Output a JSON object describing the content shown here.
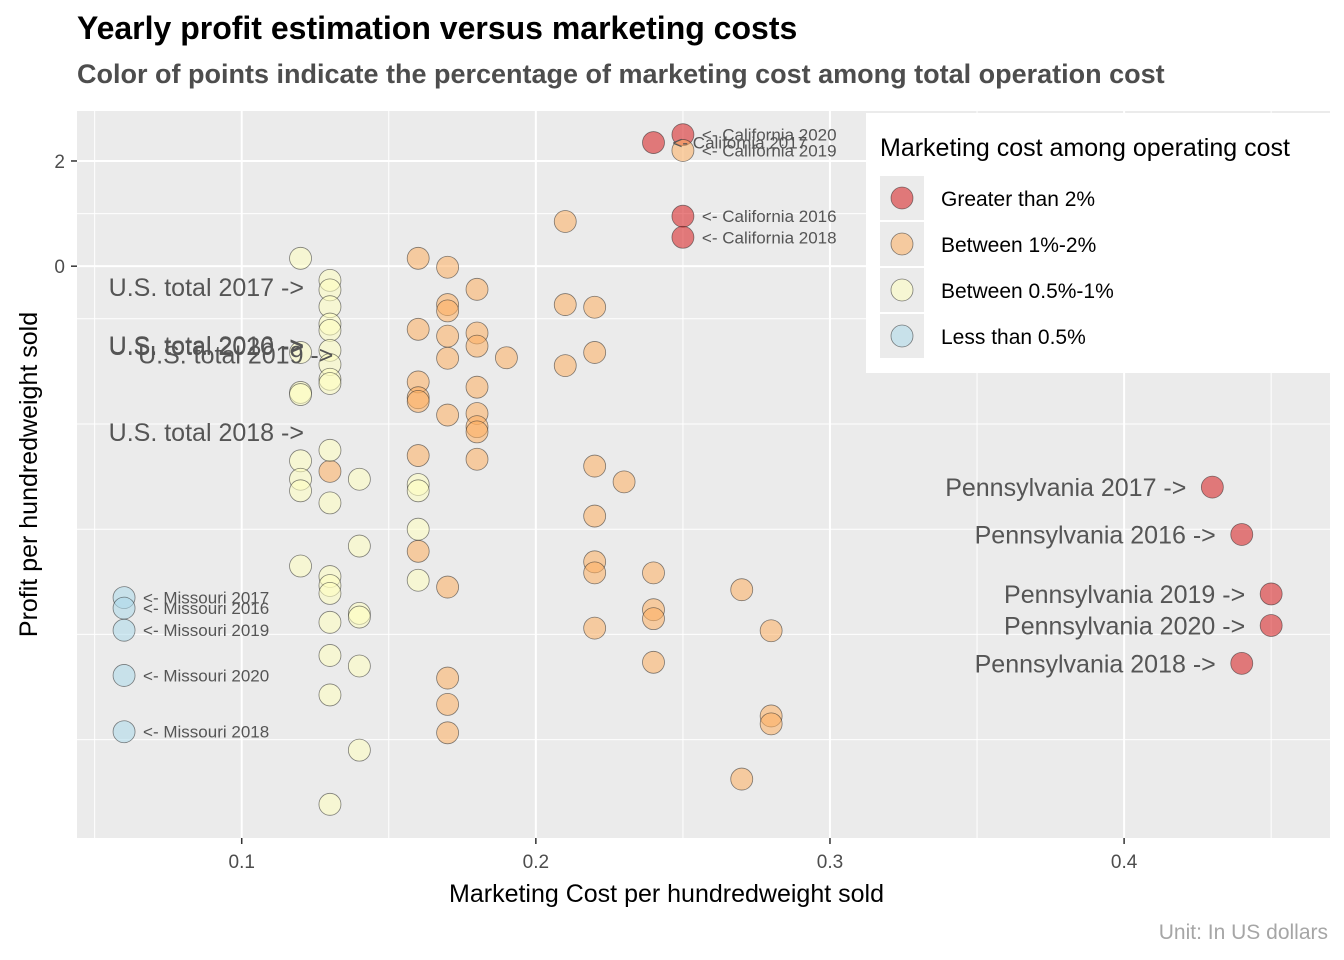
{
  "header": {
    "title": "Yearly profit estimation versus marketing costs",
    "subtitle": "Color of points indicate the percentage of marketing cost among total operation cost",
    "caption": "Unit: In US dollars"
  },
  "colors": {
    "panel_bg": "#ebebeb",
    "grid": "#ffffff",
    "gt2": "#d7191c",
    "b12": "#fdae61",
    "b0501": "#ffffbf",
    "lt05": "#abd9e9"
  },
  "chart_data": {
    "type": "scatter",
    "title": "Yearly profit estimation versus marketing costs",
    "subtitle": "Color of points indicate the percentage of marketing cost among total operation cost",
    "xlabel": "Marketing Cost per hundredweight sold",
    "ylabel": "Profit per hundredweight sold",
    "xlim": [
      0.044,
      0.47
    ],
    "ylim": [
      -10.87,
      2.95
    ],
    "x_ticks": [
      0.1,
      0.2,
      0.3,
      0.4
    ],
    "x_tick_labels": [
      "0.1",
      "0.2",
      "0.3",
      "0.4"
    ],
    "y_ticks": [
      2,
      0
    ],
    "y_tick_labels": [
      "2",
      "0"
    ],
    "grid": true,
    "legend": {
      "title": "Marketing cost among operating cost",
      "position": "right",
      "entries": [
        {
          "key": "gt2",
          "label": "Greater than 2%"
        },
        {
          "key": "b12",
          "label": "Between 1%-2%"
        },
        {
          "key": "b0501",
          "label": "Between 0.5%-1%"
        },
        {
          "key": "lt05",
          "label": "Less than 0.5%"
        }
      ]
    },
    "series": [
      {
        "category": "gt2",
        "points": [
          [
            0.25,
            2.5
          ],
          [
            0.24,
            2.35
          ],
          [
            0.25,
            0.95
          ],
          [
            0.25,
            0.55
          ],
          [
            0.43,
            -4.2
          ],
          [
            0.44,
            -5.1
          ],
          [
            0.45,
            -6.23
          ],
          [
            0.45,
            -6.83
          ],
          [
            0.44,
            -7.55
          ]
        ]
      },
      {
        "category": "b12",
        "points": [
          [
            0.25,
            2.2
          ],
          [
            0.21,
            0.85
          ],
          [
            0.16,
            0.15
          ],
          [
            0.17,
            -0.02
          ],
          [
            0.18,
            -0.44
          ],
          [
            0.17,
            -0.73
          ],
          [
            0.21,
            -0.73
          ],
          [
            0.22,
            -0.78
          ],
          [
            0.17,
            -0.85
          ],
          [
            0.16,
            -1.2
          ],
          [
            0.18,
            -1.27
          ],
          [
            0.17,
            -1.33
          ],
          [
            0.18,
            -1.52
          ],
          [
            0.22,
            -1.64
          ],
          [
            0.19,
            -1.74
          ],
          [
            0.17,
            -1.75
          ],
          [
            0.21,
            -1.89
          ],
          [
            0.16,
            -2.2
          ],
          [
            0.18,
            -2.3
          ],
          [
            0.16,
            -2.5
          ],
          [
            0.16,
            -2.57
          ],
          [
            0.18,
            -2.8
          ],
          [
            0.17,
            -2.83
          ],
          [
            0.18,
            -3.05
          ],
          [
            0.18,
            -3.15
          ],
          [
            0.16,
            -3.6
          ],
          [
            0.18,
            -3.67
          ],
          [
            0.22,
            -3.8
          ],
          [
            0.13,
            -3.9
          ],
          [
            0.23,
            -4.1
          ],
          [
            0.22,
            -4.75
          ],
          [
            0.16,
            -5.42
          ],
          [
            0.22,
            -5.62
          ],
          [
            0.22,
            -5.83
          ],
          [
            0.24,
            -5.83
          ],
          [
            0.17,
            -6.1
          ],
          [
            0.27,
            -6.15
          ],
          [
            0.24,
            -6.53
          ],
          [
            0.24,
            -6.7
          ],
          [
            0.22,
            -6.88
          ],
          [
            0.28,
            -6.93
          ],
          [
            0.24,
            -7.53
          ],
          [
            0.17,
            -7.83
          ],
          [
            0.17,
            -8.33
          ],
          [
            0.28,
            -8.55
          ],
          [
            0.28,
            -8.7
          ],
          [
            0.17,
            -8.87
          ],
          [
            0.27,
            -9.75
          ]
        ]
      },
      {
        "category": "b0501",
        "points": [
          [
            0.12,
            0.15
          ],
          [
            0.13,
            -0.27
          ],
          [
            0.13,
            -0.45
          ],
          [
            0.13,
            -0.77
          ],
          [
            0.13,
            -1.1
          ],
          [
            0.13,
            -1.22
          ],
          [
            0.13,
            -1.6
          ],
          [
            0.12,
            -1.64
          ],
          [
            0.13,
            -1.87
          ],
          [
            0.13,
            -2.15
          ],
          [
            0.13,
            -2.23
          ],
          [
            0.12,
            -2.4
          ],
          [
            0.12,
            -2.44
          ],
          [
            0.13,
            -3.5
          ],
          [
            0.12,
            -3.7
          ],
          [
            0.12,
            -4.05
          ],
          [
            0.14,
            -4.05
          ],
          [
            0.16,
            -4.15
          ],
          [
            0.12,
            -4.27
          ],
          [
            0.16,
            -4.27
          ],
          [
            0.13,
            -4.5
          ],
          [
            0.16,
            -5.0
          ],
          [
            0.14,
            -5.32
          ],
          [
            0.12,
            -5.7
          ],
          [
            0.13,
            -5.9
          ],
          [
            0.16,
            -5.97
          ],
          [
            0.13,
            -6.07
          ],
          [
            0.13,
            -6.22
          ],
          [
            0.14,
            -6.6
          ],
          [
            0.14,
            -6.67
          ],
          [
            0.13,
            -6.77
          ],
          [
            0.13,
            -7.4
          ],
          [
            0.14,
            -7.6
          ],
          [
            0.13,
            -8.15
          ],
          [
            0.14,
            -9.2
          ],
          [
            0.13,
            -10.23
          ]
        ]
      },
      {
        "category": "lt05",
        "points": [
          [
            0.06,
            -6.3
          ],
          [
            0.06,
            -6.5
          ],
          [
            0.06,
            -6.92
          ],
          [
            0.06,
            -7.78
          ],
          [
            0.06,
            -8.85
          ]
        ]
      }
    ],
    "annotations": [
      {
        "text": "<- California 2020",
        "x": 0.25,
        "y": 2.5,
        "side": "right",
        "size": "small"
      },
      {
        "text": "<- California 2017",
        "x": 0.24,
        "y": 2.35,
        "side": "right",
        "size": "small"
      },
      {
        "text": "<- California 2019",
        "x": 0.25,
        "y": 2.2,
        "side": "right",
        "size": "small"
      },
      {
        "text": "<- California 2016",
        "x": 0.25,
        "y": 0.95,
        "side": "right",
        "size": "small"
      },
      {
        "text": "<- California 2018",
        "x": 0.25,
        "y": 0.55,
        "side": "right",
        "size": "small"
      },
      {
        "text": "<- Missouri 2017",
        "x": 0.06,
        "y": -6.3,
        "side": "right",
        "size": "small"
      },
      {
        "text": "<- Missouri 2016",
        "x": 0.06,
        "y": -6.5,
        "side": "right",
        "size": "small"
      },
      {
        "text": "<- Missouri 2019",
        "x": 0.06,
        "y": -6.92,
        "side": "right",
        "size": "small"
      },
      {
        "text": "<- Missouri 2020",
        "x": 0.06,
        "y": -7.78,
        "side": "right",
        "size": "small"
      },
      {
        "text": "<- Missouri 2018",
        "x": 0.06,
        "y": -8.85,
        "side": "right",
        "size": "small"
      },
      {
        "text": "U.S. total 2017 ->",
        "x": 0.13,
        "y": -0.4,
        "side": "left",
        "size": "large"
      },
      {
        "text": "U.S. total 2016 ->",
        "x": 0.13,
        "y": -1.5,
        "side": "left",
        "size": "large"
      },
      {
        "text": "U.S. total 2020 ->",
        "x": 0.13,
        "y": -1.52,
        "side": "left",
        "size": "large"
      },
      {
        "text": "U.S. total 2019 ->",
        "x": 0.14,
        "y": -1.68,
        "side": "left",
        "size": "large"
      },
      {
        "text": "U.S. total 2018 ->",
        "x": 0.13,
        "y": -3.15,
        "side": "left",
        "size": "large"
      },
      {
        "text": "Pennsylvania 2017 ->",
        "x": 0.43,
        "y": -4.2,
        "side": "left",
        "size": "large"
      },
      {
        "text": "Pennsylvania 2016 ->",
        "x": 0.44,
        "y": -5.1,
        "side": "left",
        "size": "large"
      },
      {
        "text": "Pennsylvania 2019 ->",
        "x": 0.45,
        "y": -6.23,
        "side": "left",
        "size": "large"
      },
      {
        "text": "Pennsylvania 2020 ->",
        "x": 0.45,
        "y": -6.83,
        "side": "left",
        "size": "large"
      },
      {
        "text": "Pennsylvania 2018 ->",
        "x": 0.44,
        "y": -7.55,
        "side": "left",
        "size": "large"
      }
    ]
  }
}
